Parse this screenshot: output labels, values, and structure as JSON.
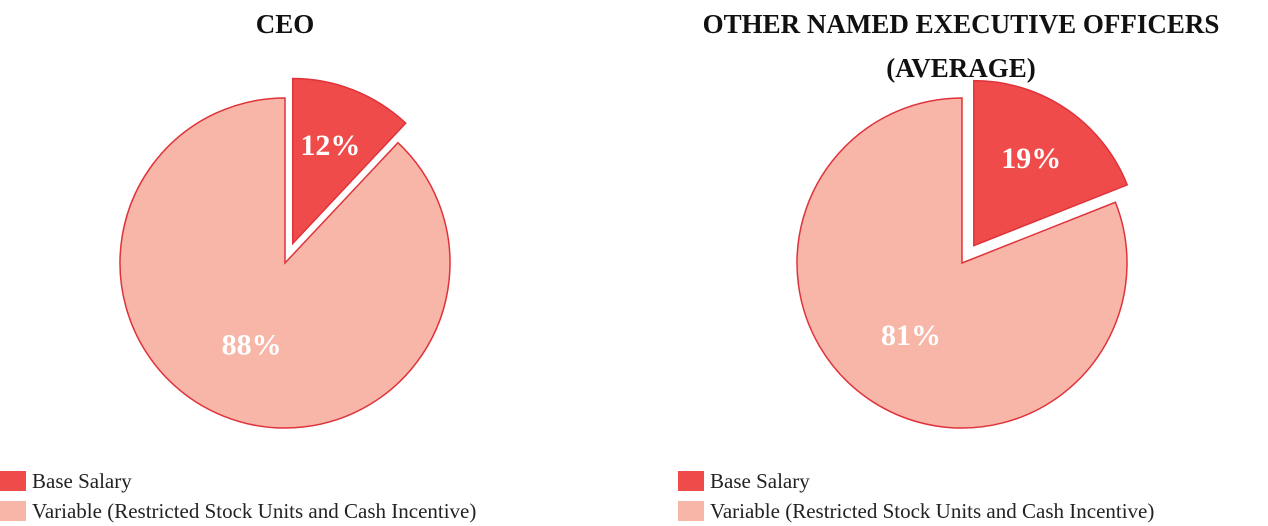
{
  "chart_data": [
    {
      "type": "pie",
      "title": "CEO",
      "categories": [
        "Base Salary",
        "Variable (Restricted Stock Units and Cash Incentive)"
      ],
      "values": [
        12,
        88
      ],
      "value_labels": [
        "12%",
        "88%"
      ],
      "colors": [
        "#ef4b4b",
        "#f7b6a7"
      ]
    },
    {
      "type": "pie",
      "title": "OTHER NAMED EXECUTIVE OFFICERS (AVERAGE)",
      "categories": [
        "Base Salary",
        "Variable (Restricted Stock Units and Cash Incentive)"
      ],
      "values": [
        19,
        81
      ],
      "value_labels": [
        "19%",
        "81%"
      ],
      "colors": [
        "#ef4b4b",
        "#f7b6a7"
      ]
    }
  ]
}
